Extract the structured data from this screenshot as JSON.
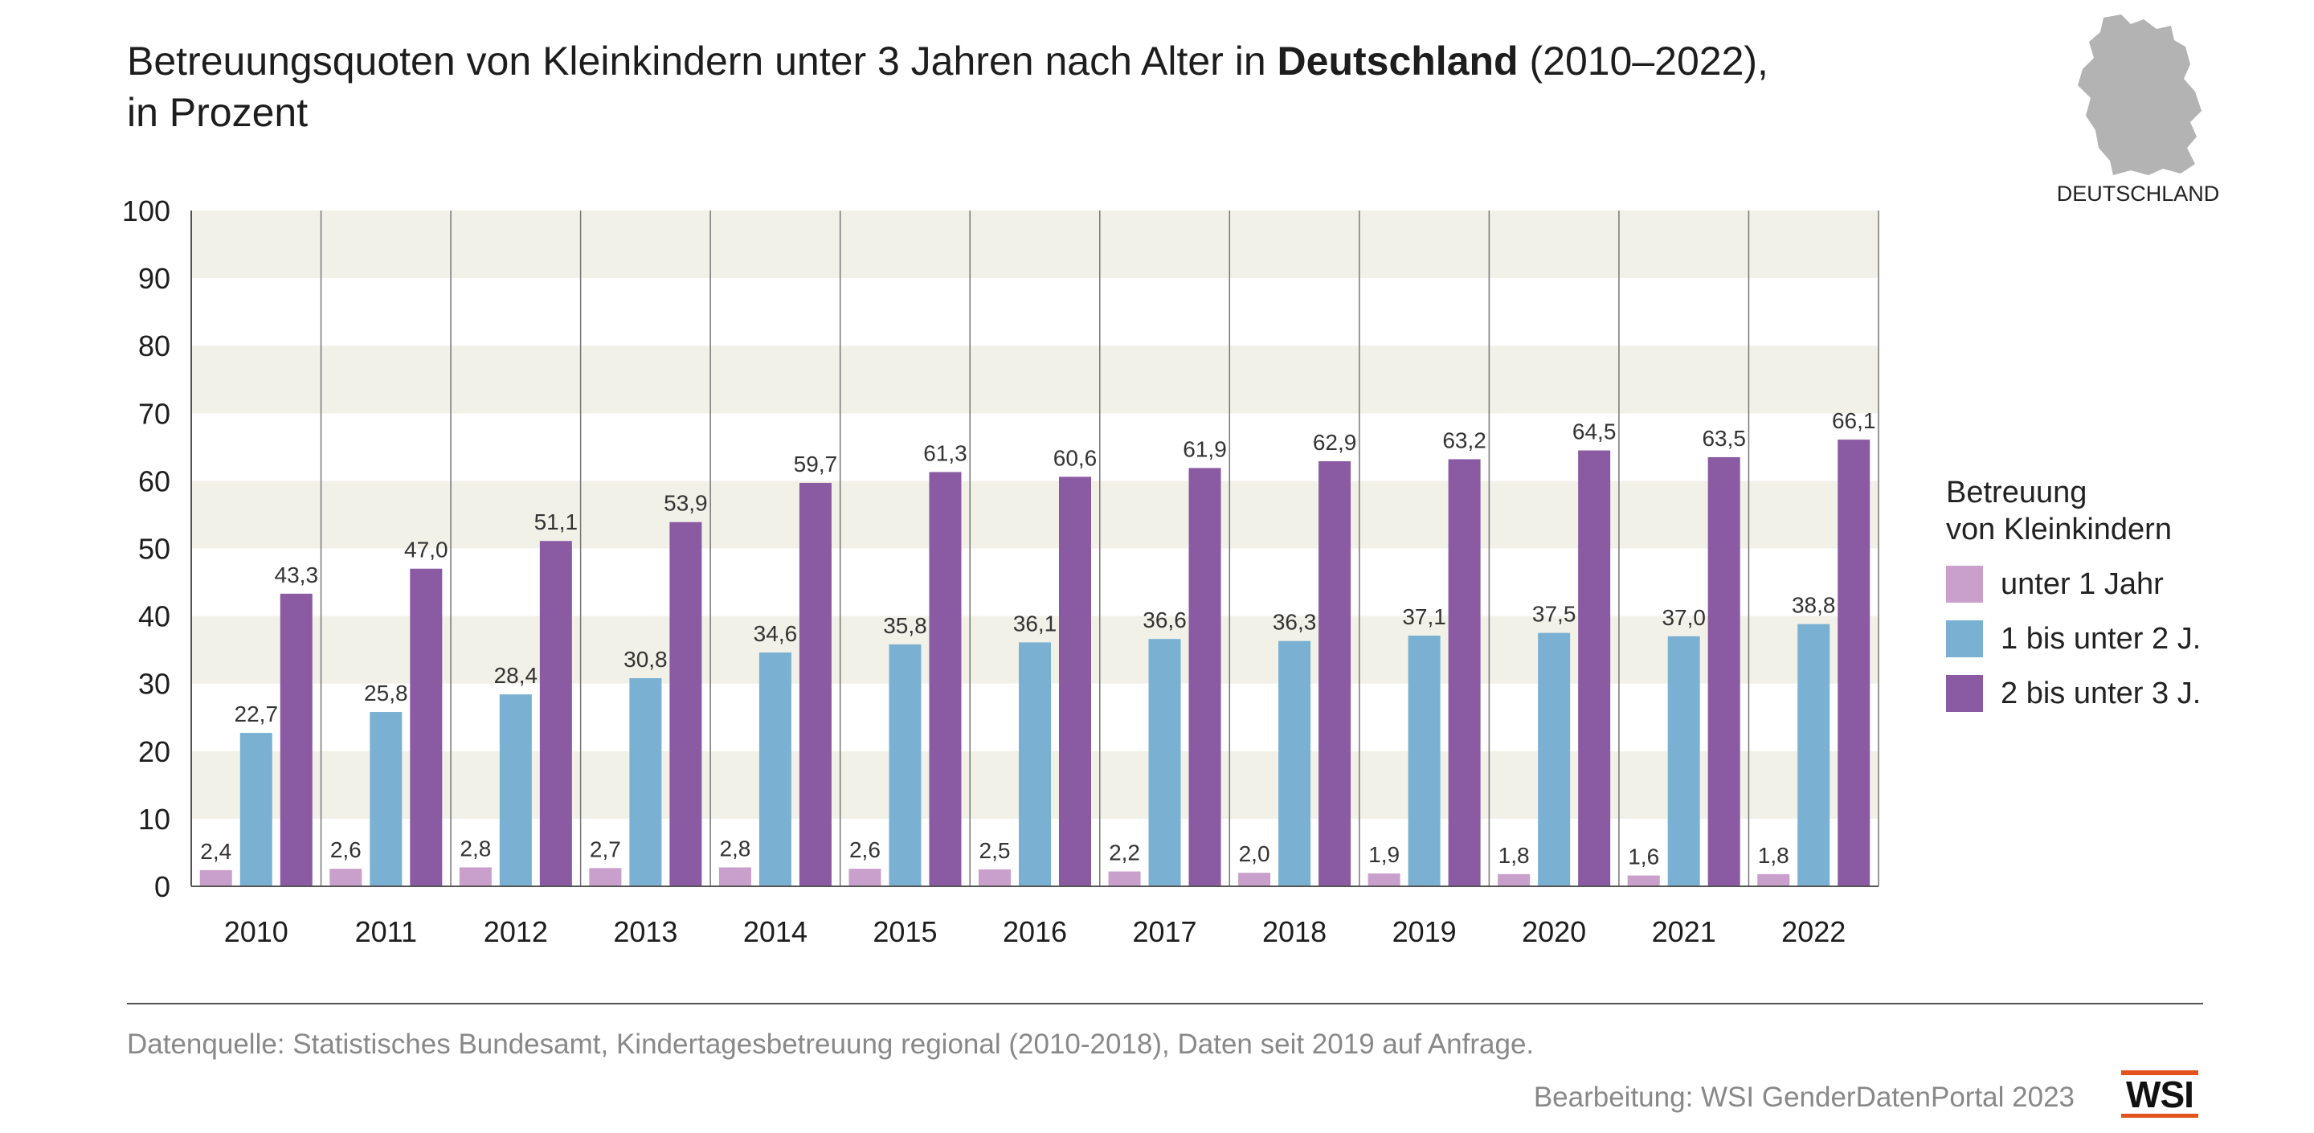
{
  "header": {
    "title_part1": "Betreuungsquoten von Kleinkindern unter 3 Jahren nach Alter in ",
    "title_bold": "Deutschland",
    "title_part2": " (2010–2022),",
    "title_line2": "in Prozent"
  },
  "map": {
    "label": "DEUTSCHLAND",
    "color": "#b3b3b3"
  },
  "legend": {
    "title_line1": "Betreuung",
    "title_line2": "von Kleinkindern"
  },
  "footer": {
    "source": "Datenquelle: Statistisches Bundesamt, Kindertagesbetreuung regional (2010-2018), Daten seit 2019 auf Anfrage.",
    "credit": "Bearbeitung: WSI GenderDatenPortal 2023",
    "logo_text": "WSI"
  },
  "colors": {
    "band": "#f2f1e8",
    "axis": "#777777",
    "logo_accent": "#e2521d"
  },
  "chart_data": {
    "type": "bar",
    "title": "",
    "xlabel": "",
    "ylabel": "",
    "ylim": [
      0,
      100
    ],
    "yticks": [
      "0",
      "10",
      "20",
      "30",
      "40",
      "50",
      "60",
      "70",
      "80",
      "90",
      "100"
    ],
    "categories": [
      "2010",
      "2011",
      "2012",
      "2013",
      "2014",
      "2015",
      "2016",
      "2017",
      "2018",
      "2019",
      "2020",
      "2021",
      "2022"
    ],
    "series": [
      {
        "name": "unter 1 Jahr",
        "color": "#c9a0cc",
        "values": [
          2.4,
          2.6,
          2.8,
          2.7,
          2.8,
          2.6,
          2.5,
          2.2,
          2.0,
          1.9,
          1.8,
          1.6,
          1.8
        ],
        "labels": [
          "2,4",
          "2,6",
          "2,8",
          "2,7",
          "2,8",
          "2,6",
          "2,5",
          "2,2",
          "2,0",
          "1,9",
          "1,8",
          "1,6",
          "1,8"
        ]
      },
      {
        "name": "1 bis unter 2 J.",
        "color": "#7ab1d3",
        "values": [
          22.7,
          25.8,
          28.4,
          30.8,
          34.6,
          35.8,
          36.1,
          36.6,
          36.3,
          37.1,
          37.5,
          37.0,
          38.8
        ],
        "labels": [
          "22,7",
          "25,8",
          "28,4",
          "30,8",
          "34,6",
          "35,8",
          "36,1",
          "36,6",
          "36,3",
          "37,1",
          "37,5",
          "37,0",
          "38,8"
        ]
      },
      {
        "name": "2 bis unter 3 J.",
        "color": "#8a5aa2",
        "values": [
          43.3,
          47.0,
          51.1,
          53.9,
          59.7,
          61.3,
          60.6,
          61.9,
          62.9,
          63.2,
          64.5,
          63.5,
          66.1
        ],
        "labels": [
          "43,3",
          "47,0",
          "51,1",
          "53,9",
          "59,7",
          "61,3",
          "60,6",
          "61,9",
          "62,9",
          "63,2",
          "64,5",
          "63,5",
          "66,1"
        ]
      }
    ],
    "grid": "alternating horizontal bands",
    "legend_position": "right"
  }
}
